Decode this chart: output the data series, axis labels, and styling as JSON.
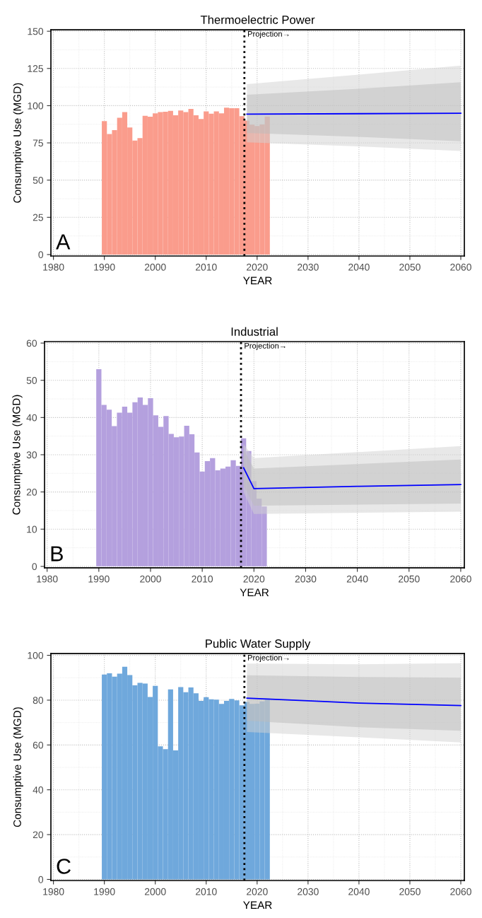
{
  "chart_data": [
    {
      "type": "bar",
      "title": "Thermoelectric Power",
      "xlabel": "YEAR",
      "ylabel": "Consumptive Use (MGD)",
      "xlim": [
        1979.5,
        2060.7
      ],
      "xticks": [
        1980,
        1990,
        2000,
        2010,
        2020,
        2030,
        2040,
        2050,
        2060
      ],
      "ylim": [
        -1,
        151
      ],
      "yticks": [
        0,
        25,
        50,
        75,
        100,
        125,
        150
      ],
      "grid": true,
      "series": [
        {
          "color": "#fa9c8c",
          "x": [
            1990,
            1991,
            1992,
            1993,
            1994,
            1995,
            1996,
            1997,
            1998,
            1999,
            2000,
            2001,
            2002,
            2003,
            2004,
            2005,
            2006,
            2007,
            2008,
            2009,
            2010,
            2011,
            2012,
            2013,
            2014,
            2015,
            2016,
            2017,
            2018,
            2019,
            2020,
            2021,
            2022
          ],
          "values": [
            89.6,
            81.0,
            83.6,
            91.9,
            95.7,
            85.3,
            76.6,
            78.2,
            93.2,
            92.6,
            94.9,
            95.7,
            95.9,
            96.5,
            93.5,
            96.8,
            95.7,
            97.8,
            93.5,
            91.0,
            96.1,
            94.6,
            96.1,
            94.8,
            98.6,
            98.3,
            98.3,
            93.0,
            90.0,
            87.2,
            86.3,
            87.4,
            92.7
          ]
        },
        {
          "type": "line",
          "color": "#d2d2d2",
          "x": [
            2018,
            2040,
            2060
          ],
          "values": [
            null,
            null,
            null
          ],
          "lower": [
            75.4,
            72.7,
            69.5
          ],
          "upper": [
            114.5,
            120.9,
            126.9
          ]
        },
        {
          "type": "line",
          "color": "#bcbcbc",
          "x": [
            2018,
            2040,
            2060
          ],
          "values": [
            null,
            null,
            null
          ],
          "lower": [
            81.7,
            79.0,
            76.1
          ],
          "upper": [
            107.3,
            111.4,
            115.8
          ]
        },
        {
          "type": "line",
          "color": "#0000ff",
          "x": [
            2018,
            2040,
            2060
          ],
          "values": [
            94.3,
            94.6,
            94.9
          ]
        }
      ],
      "ref_lines": [
        {
          "axis": "x",
          "value": 2017.5,
          "label": "Projection→",
          "color": "#000000",
          "line_style": "dotted"
        }
      ],
      "annotations": [
        "A"
      ]
    },
    {
      "type": "bar",
      "title": "Industrial",
      "xlabel": "YEAR",
      "ylabel": "Consumptive Use (MGD)",
      "xlim": [
        1979.5,
        2060.7
      ],
      "xticks": [
        1980,
        1990,
        2000,
        2010,
        2020,
        2030,
        2040,
        2050,
        2060
      ],
      "ylim": [
        -0.4,
        60.4
      ],
      "yticks": [
        0,
        10,
        20,
        30,
        40,
        50,
        60
      ],
      "grid": true,
      "series": [
        {
          "color": "#b4a0de",
          "x": [
            1990,
            1991,
            1992,
            1993,
            1994,
            1995,
            1996,
            1997,
            1998,
            1999,
            2000,
            2001,
            2002,
            2003,
            2004,
            2005,
            2006,
            2007,
            2008,
            2009,
            2010,
            2011,
            2012,
            2013,
            2014,
            2015,
            2016,
            2017,
            2018,
            2019,
            2020,
            2021,
            2022
          ],
          "values": [
            53.0,
            43.4,
            42.1,
            37.7,
            41.3,
            42.9,
            41.3,
            44.1,
            45.4,
            43.4,
            45.2,
            40.6,
            37.5,
            40.4,
            35.6,
            34.7,
            34.9,
            37.8,
            35.5,
            30.6,
            25.5,
            28.3,
            29.1,
            25.8,
            26.3,
            26.8,
            28.5,
            27.0,
            34.4,
            31.0,
            22.9,
            18.2,
            16.1
          ]
        },
        {
          "type": "line",
          "color": "#d2d2d2",
          "x": [
            2018,
            2020,
            2060
          ],
          "values": [
            null,
            null,
            null
          ],
          "lower": [
            19.9,
            14.1,
            14.7
          ],
          "upper": [
            32.9,
            29.1,
            32.3
          ]
        },
        {
          "type": "line",
          "color": "#bcbcbc",
          "x": [
            2018,
            2020,
            2060
          ],
          "values": [
            null,
            null,
            null
          ],
          "lower": [
            21.8,
            16.3,
            16.9
          ],
          "upper": [
            31.3,
            26.3,
            28.7
          ]
        },
        {
          "type": "line",
          "color": "#0000ff",
          "x": [
            2018,
            2020,
            2040,
            2060
          ],
          "values": [
            26.5,
            20.9,
            21.5,
            22.0
          ]
        }
      ],
      "ref_lines": [
        {
          "axis": "x",
          "value": 2017.5,
          "label": "Projection→",
          "color": "#000000",
          "line_style": "dotted"
        }
      ],
      "annotations": [
        "B"
      ]
    },
    {
      "type": "bar",
      "title": "Public Water Supply",
      "xlabel": "YEAR",
      "ylabel": "Consumptive Use (MGD)",
      "xlim": [
        1979.5,
        2060.7
      ],
      "xticks": [
        1980,
        1990,
        2000,
        2010,
        2020,
        2030,
        2040,
        2050,
        2060
      ],
      "ylim": [
        -0.5,
        100.8
      ],
      "yticks": [
        0,
        20,
        40,
        60,
        80,
        100
      ],
      "grid": true,
      "series": [
        {
          "color": "#6fa8dc",
          "x": [
            1990,
            1991,
            1992,
            1993,
            1994,
            1995,
            1996,
            1997,
            1998,
            1999,
            2000,
            2001,
            2002,
            2003,
            2004,
            2005,
            2006,
            2007,
            2008,
            2009,
            2010,
            2011,
            2012,
            2013,
            2014,
            2015,
            2016,
            2017,
            2018,
            2019,
            2020,
            2021,
            2022
          ],
          "values": [
            91.4,
            92.0,
            90.5,
            91.8,
            94.9,
            91.2,
            86.6,
            87.7,
            87.4,
            81.4,
            86.4,
            59.4,
            58.1,
            84.8,
            57.6,
            85.8,
            83.5,
            85.7,
            83.1,
            79.7,
            81.3,
            80.4,
            80.2,
            78.3,
            79.7,
            80.5,
            79.9,
            77.7,
            79.2,
            78.3,
            78.4,
            79.4,
            80.8
          ]
        },
        {
          "type": "line",
          "color": "#d2d2d2",
          "x": [
            2018,
            2040,
            2060
          ],
          "values": [
            null,
            null,
            null
          ],
          "lower": [
            65.8,
            63.4,
            61.1
          ],
          "upper": [
            96.3,
            96.0,
            96.5
          ]
        },
        {
          "type": "line",
          "color": "#bcbcbc",
          "x": [
            2018,
            2040,
            2060
          ],
          "values": [
            null,
            null,
            null
          ],
          "lower": [
            70.8,
            67.9,
            66.3
          ],
          "upper": [
            91.1,
            90.3,
            90.0
          ]
        },
        {
          "type": "line",
          "color": "#0000ff",
          "x": [
            2018,
            2030,
            2040,
            2060
          ],
          "values": [
            80.9,
            79.7,
            78.7,
            77.6
          ]
        }
      ],
      "ref_lines": [
        {
          "axis": "x",
          "value": 2017.5,
          "label": "Projection→",
          "color": "#000000",
          "line_style": "dotted"
        }
      ],
      "annotations": [
        "C"
      ]
    }
  ]
}
